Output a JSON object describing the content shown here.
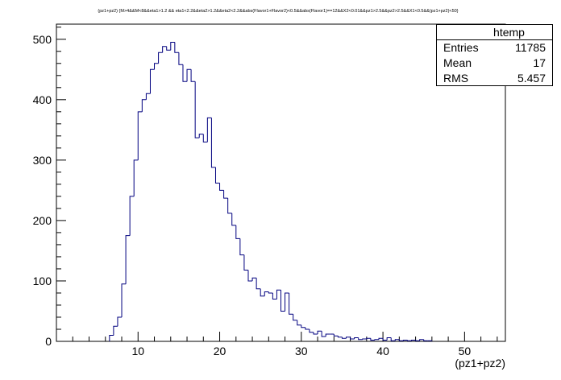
{
  "chart_data": {
    "type": "histogram",
    "title": "(pz1+pz2) {M>4&&M<8&&eta1>1.2 && eta1<2.2&&eta2>1.2&&eta2<2.2&&abs(Flavor1+Flavor2)<0.5&&abs(Flavor1)==12&&X2<0.01&&pz1>2.5&&pz2>2.5&&X1<0.5&&(pz1+pz2)<50}",
    "xlabel": "(pz1+pz2)",
    "ylabel": "",
    "xlim": [
      0,
      55
    ],
    "ylim": [
      0,
      525
    ],
    "x_ticks": [
      10,
      20,
      30,
      40,
      50
    ],
    "y_ticks": [
      0,
      100,
      200,
      300,
      400,
      500
    ],
    "line_color": "#00007f",
    "bin_width": 0.5,
    "x": [
      6.5,
      7.0,
      7.5,
      8.0,
      8.5,
      9.0,
      9.5,
      10.0,
      10.5,
      11.0,
      11.5,
      12.0,
      12.5,
      13.0,
      13.5,
      14.0,
      14.5,
      15.0,
      15.5,
      16.0,
      16.5,
      17.0,
      17.5,
      18.0,
      18.5,
      19.0,
      19.5,
      20.0,
      20.5,
      21.0,
      21.5,
      22.0,
      22.5,
      23.0,
      23.5,
      24.0,
      24.5,
      25.0,
      25.5,
      26.0,
      26.5,
      27.0,
      27.5,
      28.0,
      28.5,
      29.0,
      29.5,
      30.0,
      30.5,
      31.0,
      31.5,
      32.0,
      32.5,
      33.0,
      33.5,
      34.0,
      34.5,
      35.0,
      35.5,
      36.0,
      36.5,
      37.0,
      37.5,
      38.0,
      38.5,
      39.0,
      39.5,
      40.0,
      40.5,
      41.0,
      41.5,
      42.0,
      42.5,
      43.0,
      43.5,
      44.0,
      44.5,
      45.0,
      45.5
    ],
    "values": [
      10,
      25,
      40,
      95,
      175,
      240,
      300,
      380,
      400,
      410,
      450,
      460,
      478,
      488,
      482,
      495,
      478,
      458,
      430,
      450,
      430,
      337,
      343,
      330,
      370,
      288,
      262,
      250,
      237,
      212,
      192,
      170,
      143,
      118,
      100,
      105,
      87,
      75,
      82,
      80,
      70,
      85,
      50,
      80,
      45,
      35,
      27,
      23,
      20,
      15,
      12,
      17,
      8,
      12,
      12,
      9,
      7,
      5,
      7,
      4,
      6,
      3,
      4,
      5,
      2,
      3,
      5,
      2,
      6,
      1,
      3,
      1,
      2,
      1,
      2,
      1,
      3,
      1,
      1
    ],
    "stats": {
      "name": "htemp",
      "entries_label": "Entries",
      "entries": "11785",
      "mean_label": "Mean",
      "mean": "17",
      "rms_label": "RMS",
      "rms": "5.457"
    }
  }
}
